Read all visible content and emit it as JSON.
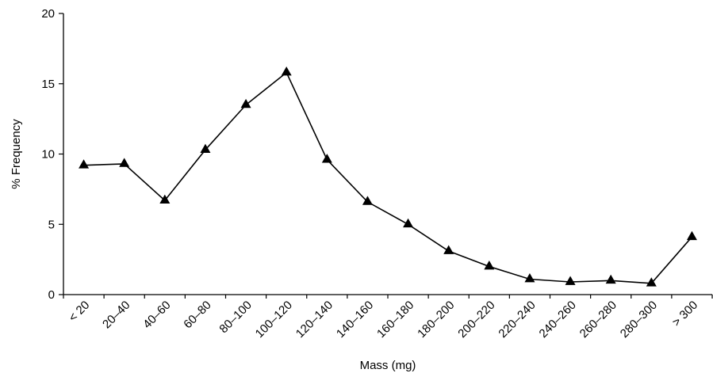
{
  "chart_data": {
    "type": "line",
    "title": "",
    "xlabel": "Mass (mg)",
    "ylabel": "% Frequency",
    "ylim": [
      0,
      20
    ],
    "yticks": [
      0,
      5,
      10,
      15,
      20
    ],
    "grid": false,
    "categories": [
      "< 20",
      "20–40",
      "40–60",
      "60–80",
      "80–100",
      "100–120",
      "120–140",
      "140–160",
      "160–180",
      "180–200",
      "200–220",
      "220–240",
      "240–260",
      "260–280",
      "280–300",
      "> 300"
    ],
    "series": [
      {
        "marker": "triangle",
        "color": "#000000",
        "values": [
          9.2,
          9.3,
          6.7,
          10.3,
          13.5,
          15.8,
          9.6,
          6.6,
          5.0,
          3.1,
          2.0,
          1.1,
          0.9,
          1.0,
          0.8,
          4.1
        ]
      }
    ]
  }
}
